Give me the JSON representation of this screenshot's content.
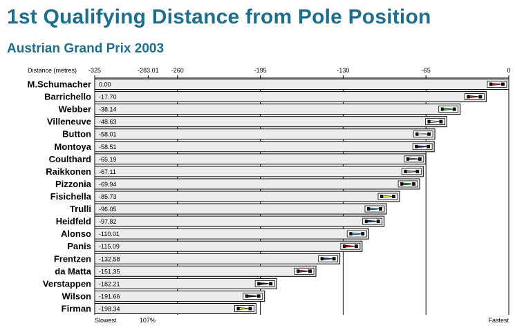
{
  "title": "1st Qualifying Distance from Pole Position",
  "subtitle": "Austrian Grand Prix 2003",
  "chart_data": {
    "type": "bar",
    "orientation": "horizontal",
    "title": "1st Qualifying Distance from Pole Position",
    "subtitle": "Austrian Grand Prix 2003",
    "xlabel": "Distance (metres)",
    "xlim": [
      -325,
      0
    ],
    "x_ticks": [
      {
        "value": -325,
        "label": "-325"
      },
      {
        "value": -283.01,
        "label": "-283.01"
      },
      {
        "value": -260,
        "label": "-260"
      },
      {
        "value": -195,
        "label": "-195"
      },
      {
        "value": -130,
        "label": "-130"
      },
      {
        "value": -65,
        "label": "-65"
      },
      {
        "value": 0,
        "label": "0"
      }
    ],
    "gridlines_at": [
      -260,
      -195,
      -130,
      -65
    ],
    "bottom_labels": {
      "slowest": "Slowest",
      "fastest": "Fastest",
      "threshold": "107%"
    },
    "threshold_value": -283.01,
    "categories": [
      "M.Schumacher",
      "Barrichello",
      "Webber",
      "Villeneuve",
      "Button",
      "Montoya",
      "Coulthard",
      "Raikkonen",
      "Pizzonia",
      "Fisichella",
      "Trulli",
      "Heidfeld",
      "Alonso",
      "Panis",
      "Frentzen",
      "da Matta",
      "Verstappen",
      "Wilson",
      "Firman"
    ],
    "values": [
      0.0,
      -17.7,
      -38.14,
      -48.63,
      -58.01,
      -58.51,
      -65.19,
      -67.11,
      -69.94,
      -85.73,
      -96.05,
      -97.82,
      -110.01,
      -115.09,
      -132.58,
      -151.35,
      -182.21,
      -191.66,
      -198.34
    ],
    "value_labels": [
      "0.00",
      "-17.70",
      "-38.14",
      "-48.63",
      "-58.01",
      "-58.51",
      "-65.19",
      "-67.11",
      "-69.94",
      "-85.73",
      "-96.05",
      "-97.82",
      "-110.01",
      "-115.09",
      "-132.58",
      "-151.35",
      "-182.21",
      "-191.66",
      "-198.34"
    ],
    "team_colors": [
      "#e8291c",
      "#e8291c",
      "#2aa52a",
      "#f2f2f2",
      "#f2f2f2",
      "#1c3f94",
      "#9a9a9a",
      "#9a9a9a",
      "#2aa52a",
      "#f2e21c",
      "#3ab0e0",
      "#1c3f94",
      "#3ab0e0",
      "#d01c1c",
      "#1c3f94",
      "#d01c1c",
      "#1a1a3a",
      "#1a1a3a",
      "#f2e21c"
    ],
    "bar_fill": "#ececec",
    "grid": true
  }
}
